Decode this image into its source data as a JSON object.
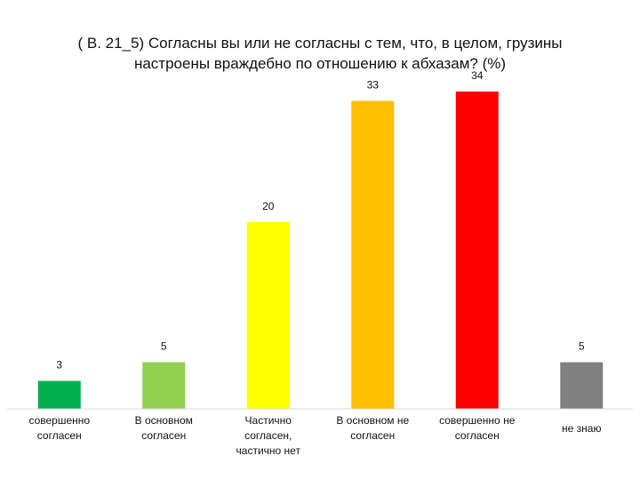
{
  "title_lines": [
    "( B. 21_5)  Согласны вы или не согласны с тем, что, в целом, грузины",
    "настроены враждебно по отношению к абхазам?   (%)"
  ],
  "chart_data": {
    "type": "bar",
    "title": "( B. 21_5)  Согласны вы или не согласны с тем, что, в целом, грузины настроены враждебно по отношению к абхазам?   (%)",
    "categories": [
      [
        "совершенно",
        "согласен"
      ],
      [
        "В основном",
        "согласен"
      ],
      [
        "Частично",
        "согласен,",
        "частично нет"
      ],
      [
        "В основном не",
        "согласен"
      ],
      [
        "совершенно не",
        "согласен"
      ],
      [
        "не знаю"
      ]
    ],
    "values": [
      3,
      5,
      20,
      33,
      34,
      5
    ],
    "colors": [
      "#00b050",
      "#92d050",
      "#ffff00",
      "#ffc000",
      "#ff0000",
      "#808080"
    ],
    "ylim": [
      0,
      34
    ],
    "grid": false,
    "legend": "none",
    "xlabel": "",
    "ylabel": ""
  }
}
